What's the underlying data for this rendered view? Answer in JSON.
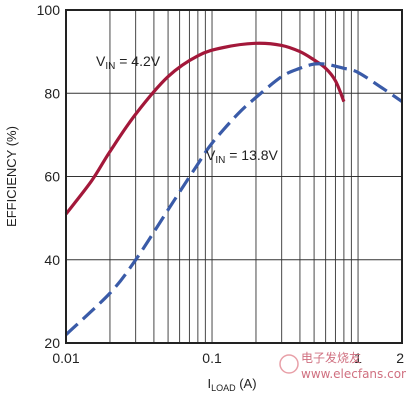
{
  "chart_data": {
    "type": "line",
    "xlabel": {
      "main": "I",
      "sub": "LOAD",
      "rest": " (A)"
    },
    "ylabel": "EFFICIENCY (%)",
    "xscale": "log",
    "xlim": [
      0.01,
      2
    ],
    "ylim": [
      20,
      100
    ],
    "x_tick_labels": [
      "0.01",
      "0.1",
      "1",
      "2"
    ],
    "x_ticks": [
      0.01,
      0.1,
      1,
      2
    ],
    "y_ticks": [
      20,
      40,
      60,
      80,
      100
    ],
    "y_tick_labels": [
      "20",
      "40",
      "60",
      "80",
      "100"
    ],
    "grid": true,
    "series": [
      {
        "name": "V_IN = 4.2V",
        "label": {
          "main": "V",
          "sub": "IN",
          "rest": " = 4.2V"
        },
        "color": "#a3183a",
        "style": "solid",
        "x": [
          0.01,
          0.015,
          0.02,
          0.03,
          0.05,
          0.08,
          0.12,
          0.2,
          0.3,
          0.4,
          0.5,
          0.6,
          0.7,
          0.8
        ],
        "y": [
          51,
          59,
          66,
          75,
          84,
          89,
          91,
          92,
          91.5,
          90,
          88,
          86,
          83,
          78
        ]
      },
      {
        "name": "V_IN = 13.8V",
        "label": {
          "main": "V",
          "sub": "IN",
          "rest": " = 13.8V"
        },
        "color": "#3a5ba8",
        "style": "dashed",
        "x": [
          0.01,
          0.02,
          0.03,
          0.05,
          0.08,
          0.1,
          0.15,
          0.2,
          0.3,
          0.4,
          0.5,
          0.6,
          0.7,
          0.8,
          1.0,
          1.5,
          2.0
        ],
        "y": [
          22,
          32,
          40,
          52,
          63,
          68,
          75,
          79,
          84,
          86,
          87,
          87,
          86.5,
          86,
          85,
          81,
          78
        ]
      }
    ]
  },
  "watermark": {
    "text": "电子发烧友",
    "url": "www.elecfans.com"
  }
}
